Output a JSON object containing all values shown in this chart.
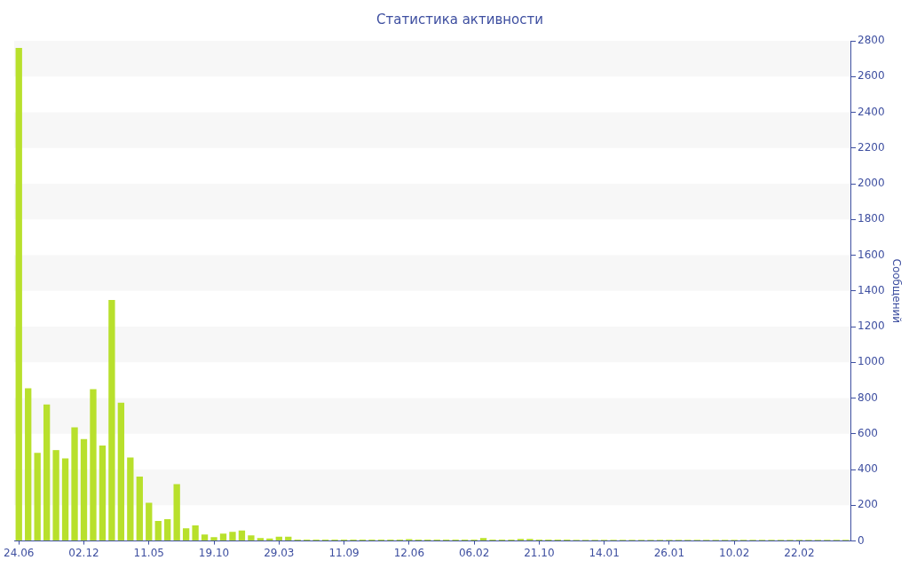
{
  "chart_data": {
    "type": "bar",
    "title": "Статистика активности",
    "y2label": "Сообщений",
    "categories": [
      "24.06",
      null,
      null,
      null,
      null,
      null,
      null,
      "02.12",
      null,
      null,
      null,
      null,
      null,
      null,
      "11.05",
      null,
      null,
      null,
      null,
      null,
      null,
      "19.10",
      null,
      null,
      null,
      null,
      null,
      null,
      "29.03",
      null,
      null,
      null,
      null,
      null,
      null,
      "11.09",
      null,
      null,
      null,
      null,
      null,
      null,
      "12.06",
      null,
      null,
      null,
      null,
      null,
      null,
      "06.02",
      null,
      null,
      null,
      null,
      null,
      null,
      "21.10",
      null,
      null,
      null,
      null,
      null,
      null,
      "14.01",
      null,
      null,
      null,
      null,
      null,
      null,
      "26.01",
      null,
      null,
      null,
      null,
      null,
      null,
      "10.02",
      null,
      null,
      null,
      null,
      null,
      null,
      "22.02",
      null,
      null,
      null,
      null,
      null
    ],
    "series": [
      {
        "color": "#b8e02c",
        "axis": "y2",
        "values": [
          2760,
          855,
          494,
          764,
          509,
          463,
          636,
          570,
          850,
          535,
          1349,
          774,
          468,
          361,
          214,
          112,
          122,
          319,
          71,
          87,
          37,
          22,
          41,
          52,
          59,
          32,
          17,
          14,
          24,
          24,
          8,
          8,
          8,
          8,
          8,
          8,
          8,
          8,
          8,
          8,
          8,
          8,
          10,
          8,
          8,
          8,
          8,
          8,
          8,
          8,
          17,
          8,
          8,
          8,
          12,
          12,
          8,
          8,
          8,
          8,
          7,
          7,
          7,
          7,
          7,
          7,
          7,
          7,
          7,
          7,
          7,
          7,
          7,
          7,
          7,
          7,
          7,
          7,
          7,
          7,
          7,
          7,
          7,
          7,
          7,
          7,
          7,
          7,
          7,
          7
        ]
      }
    ],
    "y2lim": [
      0,
      2800
    ],
    "y2ticks": [
      0,
      200,
      400,
      600,
      800,
      1000,
      1200,
      1400,
      1600,
      1800,
      2000,
      2200,
      2400,
      2600,
      2800
    ],
    "legend": false
  }
}
